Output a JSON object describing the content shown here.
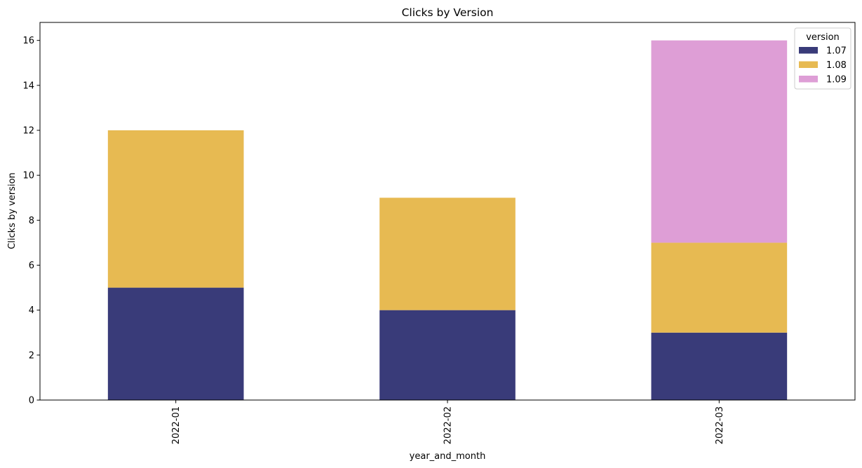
{
  "chart_data": {
    "type": "bar",
    "stacked": true,
    "title": "Clicks by Version",
    "xlabel": "year_and_month",
    "ylabel": "Clicks by version",
    "categories": [
      "2022-01",
      "2022-02",
      "2022-03"
    ],
    "series": [
      {
        "name": "1.07",
        "color": "#393b79",
        "values": [
          5,
          4,
          3
        ]
      },
      {
        "name": "1.08",
        "color": "#e7ba52",
        "values": [
          7,
          5,
          4
        ]
      },
      {
        "name": "1.09",
        "color": "#de9ed6",
        "values": [
          0,
          0,
          9
        ]
      }
    ],
    "ylim": [
      0,
      16.8
    ],
    "yticks": [
      "0",
      "2",
      "4",
      "6",
      "8",
      "10",
      "12",
      "14",
      "16"
    ],
    "grid": false,
    "legend": {
      "title": "version",
      "placement": "top-right"
    }
  }
}
